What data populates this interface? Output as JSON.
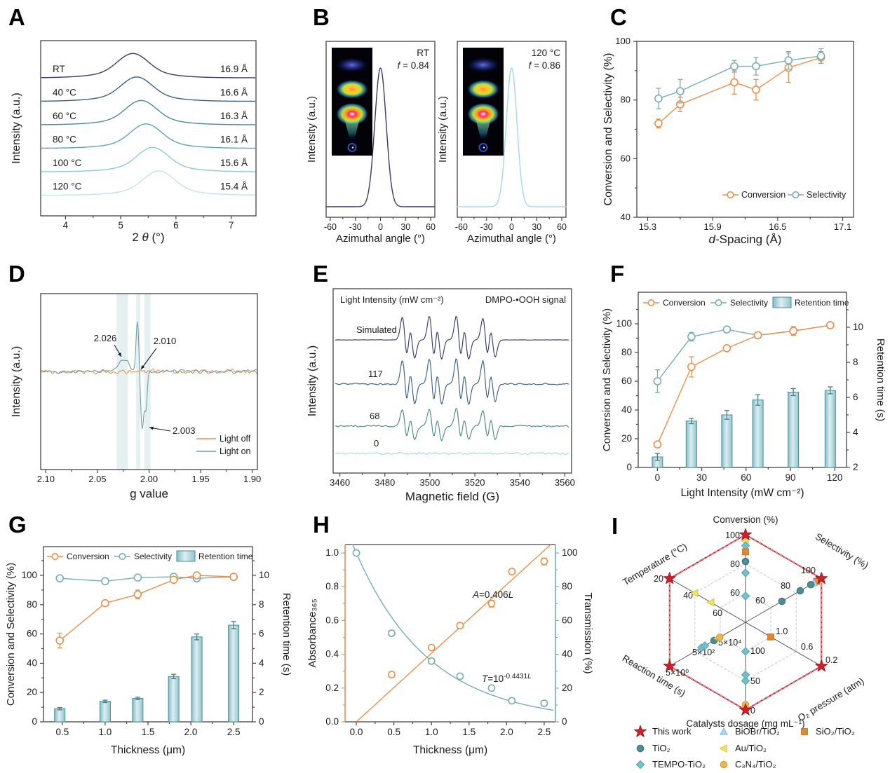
{
  "figure_title": "Multi-panel photocatalysis characterization figure",
  "accent_colors": {
    "orange": "#E8914C",
    "teal": "#79ACB4",
    "teal_dark": "#4E8D92",
    "red": "#D01F2A"
  },
  "panels": {
    "a": {
      "letter": "A",
      "xlabel": {
        "pre": "2 ",
        "italic": "θ",
        "post": " (°)"
      },
      "ylabel": "Intensity (a.u.)",
      "x_ticks": [
        4,
        5,
        6,
        7
      ],
      "x_minor": [
        4.5,
        5.5,
        6.5
      ],
      "x_range": [
        3.55,
        7.45
      ],
      "chart_data": {
        "type": "line",
        "series": [
          {
            "label": "RT",
            "d_spacing": "16.9 Å",
            "peak_2theta": 5.22,
            "color": "#393A6A"
          },
          {
            "label": "40 °C",
            "d_spacing": "16.6 Å",
            "peak_2theta": 5.29,
            "color": "#3A5F85"
          },
          {
            "label": "60 °C",
            "d_spacing": "16.3 Å",
            "peak_2theta": 5.37,
            "color": "#4A8A90"
          },
          {
            "label": "80 °C",
            "d_spacing": "16.1 Å",
            "peak_2theta": 5.46,
            "color": "#5FA3B0"
          },
          {
            "label": "100 °C",
            "d_spacing": "15.6 Å",
            "peak_2theta": 5.58,
            "color": "#8FC8D8"
          },
          {
            "label": "120 °C",
            "d_spacing": "15.4 Å",
            "peak_2theta": 5.69,
            "color": "#C2E2EE"
          }
        ]
      }
    },
    "b": {
      "letter": "B",
      "xlabel": "Azimuthal angle (°)",
      "ylabel": "Intensity (a.u.)",
      "x_ticks": [
        -60,
        -30,
        0,
        30,
        60
      ],
      "x_range": [
        -65,
        65
      ],
      "chart_data": {
        "type": "line",
        "subplots": [
          {
            "title": "RT",
            "f_label": {
              "italic": "f",
              "post": " = 0.84"
            },
            "peak_center": 0,
            "peak_sigma_deg": 6.8,
            "color": "#393A6A"
          },
          {
            "title": "120 °C",
            "f_label": {
              "italic": "f",
              "post": " = 0.86"
            },
            "peak_center": 0,
            "peak_sigma_deg": 6.4,
            "color": "#A5D8EA"
          }
        ]
      }
    },
    "c": {
      "letter": "C",
      "xlabel": {
        "italic": "d",
        "post": "-Spacing (Å)"
      },
      "ylabel": "Conversion and Selectivity (%)",
      "x_ticks": [
        15.3,
        15.9,
        16.5,
        17.1
      ],
      "x_range": [
        15.2,
        17.2
      ],
      "y_ticks": [
        40,
        60,
        80,
        100
      ],
      "y_range": [
        40,
        100
      ],
      "legend": [
        "Conversion",
        "Selectivity"
      ],
      "chart_data": {
        "type": "line",
        "x": [
          15.4,
          15.6,
          16.1,
          16.3,
          16.6,
          16.9
        ],
        "series": [
          {
            "name": "Conversion",
            "color": "#E8914C",
            "values": [
              72,
              78.5,
              86,
              83.5,
              91,
              94.5
            ],
            "errors": [
              1.5,
              2.5,
              4,
              3.5,
              5,
              2
            ]
          },
          {
            "name": "Selectivity",
            "color": "#79ACB4",
            "values": [
              80.5,
              83,
              91.5,
              91.5,
              93.5,
              95
            ],
            "errors": [
              3.5,
              4,
              2,
              3,
              3,
              2.5
            ]
          }
        ]
      }
    },
    "d": {
      "letter": "D",
      "xlabel": "g value",
      "ylabel": "Intensity (a.u.)",
      "x_ticks": [
        2.1,
        2.05,
        2.0,
        1.95,
        1.9
      ],
      "x_range": [
        2.105,
        1.895
      ],
      "bands": [
        [
          2.0315,
          2.0205
        ],
        [
          2.0125,
          2.0085
        ],
        [
          2.0045,
          1.9985
        ]
      ],
      "annotations": [
        "2.026",
        "2.010",
        "2.003"
      ],
      "legend": [
        {
          "label": "Light off",
          "color": "#E8914C"
        },
        {
          "label": "Light on",
          "color": "#6FA0A8"
        }
      ],
      "chart_data": {
        "type": "line",
        "g_features_light_on": {
          "bump": 2.026,
          "peak": 2.01,
          "dip": 2.003
        }
      }
    },
    "e": {
      "letter": "E",
      "header_left": "Light Intensity (mW cm⁻²)",
      "header_right": "DMPO-•OOH signal",
      "xlabel": "Magnetic field (G)",
      "x_ticks": [
        3460,
        3480,
        3500,
        3520,
        3540,
        3560
      ],
      "x_range": [
        3457,
        3563
      ],
      "ylabel": "Intensity (a.u.)",
      "chart_data": {
        "type": "line",
        "quartet_centers_G": [
          3490.5,
          3502.5,
          3514.5,
          3526.3
        ],
        "curves": [
          {
            "label": "Simulated",
            "amp": 34,
            "noise": 0.4,
            "color": "#393A6A"
          },
          {
            "label": "117",
            "amp": 36,
            "noise": 1.8,
            "color": "#3B6283"
          },
          {
            "label": "68",
            "amp": 25,
            "noise": 1.8,
            "color": "#4A8A8A"
          },
          {
            "label": "0",
            "amp": 0,
            "noise": 2.2,
            "color": "#A5D8EA"
          }
        ]
      }
    },
    "f": {
      "letter": "F",
      "xlabel": "Light Intensity (mW cm⁻²)",
      "ylabel_left": "Conversion and Selectivity (%)",
      "ylabel_right": "Retention time (s)",
      "x_ticks": [
        0,
        30,
        60,
        90,
        120
      ],
      "y_left_ticks": [
        0,
        20,
        40,
        60,
        80,
        100
      ],
      "y_right_ticks": [
        2,
        4,
        6,
        8,
        10
      ],
      "legend": [
        "Conversion",
        "Selectivity",
        "Retention time"
      ],
      "chart_data": {
        "type": "line+bar",
        "x": [
          0,
          23,
          47,
          68,
          92,
          117
        ],
        "conversion": {
          "values": [
            16,
            70,
            83,
            92,
            95,
            99
          ],
          "errors": [
            2,
            7,
            2,
            2,
            3,
            2
          ],
          "color": "#E8914C"
        },
        "selectivity": {
          "values": [
            60,
            91,
            96,
            92,
            95,
            99
          ],
          "errors": [
            8,
            3,
            2,
            2,
            3,
            2
          ],
          "color": "#79ACB4"
        },
        "retention_s": {
          "values": [
            2.6,
            4.65,
            5.0,
            5.85,
            6.3,
            6.4
          ],
          "errors": [
            0.2,
            0.15,
            0.25,
            0.3,
            0.2,
            0.2
          ]
        }
      }
    },
    "g": {
      "letter": "G",
      "xlabel": "Thickness (μm)",
      "ylabel_left": "Conversion and Selectivity (%)",
      "ylabel_right": "Retention time (s)",
      "x_ticks": [
        0.5,
        1.0,
        1.5,
        2.0,
        2.5
      ],
      "y_left_ticks": [
        0,
        20,
        40,
        60,
        80,
        100
      ],
      "y_right_ticks": [
        0,
        2,
        4,
        6,
        8,
        10
      ],
      "legend": [
        "Conversion",
        "Selectivity",
        "Retention time"
      ],
      "chart_data": {
        "type": "line+bar",
        "x": [
          0.47,
          1.0,
          1.38,
          1.8,
          2.07,
          2.5
        ],
        "conversion": {
          "values": [
            55.5,
            81,
            87,
            97,
            100,
            99
          ],
          "errors": [
            5,
            2,
            3,
            2,
            1.5,
            1.5
          ],
          "color": "#E8914C"
        },
        "selectivity": {
          "values": [
            98,
            96,
            98.5,
            99,
            98,
            99
          ],
          "errors": [
            1.5,
            1.5,
            1.5,
            1,
            2,
            1
          ],
          "color": "#79ACB4"
        },
        "retention_s": {
          "values": [
            0.9,
            1.4,
            1.6,
            3.1,
            5.8,
            6.6
          ],
          "errors": [
            0.08,
            0.08,
            0.08,
            0.15,
            0.2,
            0.25
          ]
        }
      }
    },
    "h": {
      "letter": "H",
      "xlabel": "Thickness (μm)",
      "ylabel_left": "Absorbance₃₆₅",
      "ylabel_right": "Transmission (%)",
      "x_ticks": [
        0.0,
        0.5,
        1.0,
        1.5,
        2.0,
        2.5
      ],
      "y_left_ticks": [
        0.0,
        0.2,
        0.4,
        0.6,
        0.8,
        1.0
      ],
      "y_right_ticks": [
        0,
        20,
        40,
        60,
        80,
        100
      ],
      "annotation_A": {
        "italic1": "A",
        "mid": "=0.406",
        "italic2": "L"
      },
      "annotation_T": {
        "italic1": "T",
        "mid": "=10",
        "sup": "-0.4431",
        "sup_italic": "L"
      },
      "chart_data": {
        "type": "scatter+fit",
        "absorbance": {
          "x": [
            0.47,
            1.0,
            1.38,
            1.8,
            2.07,
            2.5
          ],
          "values": [
            0.28,
            0.44,
            0.57,
            0.7,
            0.89,
            0.95
          ],
          "errors": [
            0.015,
            0.015,
            0.015,
            0.02,
            0.015,
            0.02
          ],
          "color": "#E8914C",
          "fit_slope": 0.406
        },
        "transmission": {
          "x": [
            0,
            0.47,
            1.0,
            1.38,
            1.8,
            2.07,
            2.5
          ],
          "values": [
            100,
            52.5,
            36,
            27,
            20,
            12.5,
            11
          ],
          "errors": [
            1.5,
            1.5,
            1.5,
            1.5,
            1.5,
            1.5,
            1.5
          ],
          "color": "#79ACB4",
          "fit_exponent": 0.4431
        }
      }
    },
    "i": {
      "letter": "I",
      "dosage_axis_title": "Catalysts dosage (mg mL⁻¹)",
      "axes": [
        {
          "id": "conversion",
          "title": "Conversion (%)",
          "ticks": [
            "100",
            "80",
            "60"
          ]
        },
        {
          "id": "selectivity",
          "title": "Selectivity (%)",
          "ticks": [
            "100",
            "80",
            "60"
          ]
        },
        {
          "id": "o2",
          "title": "O₂ pressure (atm)",
          "ticks": [
            "0.2",
            "0.6",
            "1.0"
          ]
        },
        {
          "id": "dosage",
          "title": "",
          "ticks": [
            "0",
            "50",
            "100"
          ]
        },
        {
          "id": "reaction",
          "title": "Reaction time (s)",
          "ticks": [
            "5×10⁰",
            "5×10²",
            "5×10⁴"
          ]
        },
        {
          "id": "temperature",
          "title": "Temperature (°C)",
          "ticks": [
            "20",
            "40",
            "60"
          ]
        }
      ],
      "catalysts": [
        {
          "id": "this",
          "label": "This work",
          "marker": "star",
          "fill": "#D01F2A",
          "stroke": "#8F1018"
        },
        {
          "id": "tio2",
          "label": "TiO₂",
          "marker": "circle",
          "fill": "#4E8D92",
          "stroke": "#3C7176"
        },
        {
          "id": "tempo",
          "label": "TEMPO-TiO₂",
          "marker": "diamond",
          "fill": "#74BFCA",
          "stroke": "#59A5B1"
        },
        {
          "id": "bibr",
          "label": "BiOBr/TiO₂",
          "marker": "triangle",
          "fill": "#A8D4EC",
          "stroke": "#8BBEDD"
        },
        {
          "id": "au",
          "label": "Au/TiO₂",
          "marker": "trileft",
          "fill": "#F0E468",
          "stroke": "#D6C845"
        },
        {
          "id": "c3n4",
          "label": "C₃N₄/TiO₂",
          "marker": "circle",
          "fill": "#ECB54D",
          "stroke": "#D89C30"
        },
        {
          "id": "sio2",
          "label": "SiO₂/TiO₂",
          "marker": "square",
          "fill": "#E2882F",
          "stroke": "#C76F1D"
        }
      ],
      "legend_columns": [
        [
          "this",
          "tio2",
          "tempo"
        ],
        [
          "bibr",
          "au",
          "c3n4"
        ],
        [
          "sio2"
        ]
      ],
      "chart_data": {
        "type": "radar",
        "this_work_fraction": 1.0,
        "markers": {
          "conversion": [
            [
              "au",
              0.93
            ],
            [
              "tempo",
              0.875
            ],
            [
              "sio2",
              0.805
            ],
            [
              "tio2",
              0.695
            ],
            [
              "tempo",
              0.565
            ],
            [
              "tempo",
              0.3
            ]
          ],
          "selectivity": [
            [
              "au",
              0.97
            ],
            [
              "sio2",
              0.935
            ],
            [
              "bibr",
              0.9
            ],
            [
              "tio2",
              0.86
            ],
            [
              "tio2",
              0.72
            ],
            [
              "tio2",
              0.48
            ]
          ],
          "o2": [
            [
              "sio2",
              0.333
            ]
          ],
          "dosage": [
            [
              "au",
              0.97
            ],
            [
              "c3n4",
              0.94
            ],
            [
              "tempo",
              0.667
            ],
            [
              "tempo",
              0.6
            ],
            [
              "tempo",
              0.333
            ]
          ],
          "reaction": [
            [
              "tempo",
              0.58
            ],
            [
              "tempo",
              0.535
            ],
            [
              "tio2",
              0.415
            ],
            [
              "au",
              0.365
            ],
            [
              "c3n4",
              0.34
            ]
          ],
          "temperature": [
            [
              "au",
              0.667
            ],
            [
              "au",
              0.455
            ]
          ]
        }
      }
    }
  }
}
